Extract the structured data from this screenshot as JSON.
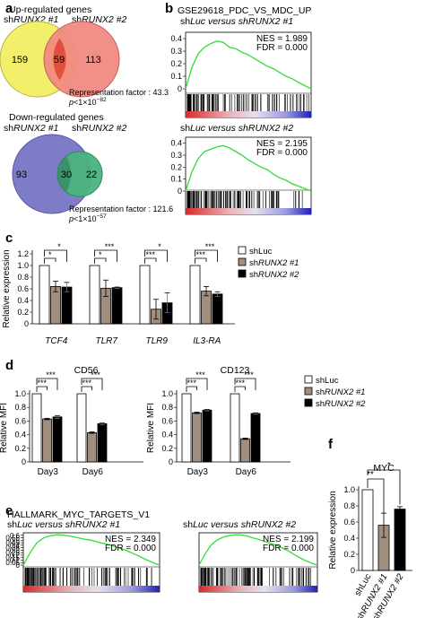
{
  "panel_letters": {
    "a": "a",
    "b": "b",
    "c": "c",
    "d": "d",
    "e": "e",
    "f": "f"
  },
  "venn": [
    {
      "heading": "Up-regulated genes",
      "set1_label": "shRUNX2 #1",
      "set2_label": "shRUNX2 #2",
      "left_only": "159",
      "overlap": "59",
      "right_only": "113",
      "rep_factor": "Representation factor : 43.3",
      "p_value": "p<1×10",
      "p_exp": "−82",
      "colors": {
        "left": "#f2ef6a",
        "right": "#f08a80",
        "overlap": "#e0503c"
      }
    },
    {
      "heading": "Down-regulated genes",
      "set1_label": "shRUNX2 #1",
      "set2_label": "shRUNX2 #2",
      "left_only": "93",
      "overlap": "30",
      "right_only": "22",
      "rep_factor": "Representation factor : 121.6",
      "p_value": "p<1×10",
      "p_exp": "−57",
      "colors": {
        "left": "#7e7cc8",
        "right": "#4bb37c",
        "overlap": "#2f7d5e"
      }
    }
  ],
  "gsea": [
    {
      "title": "GSE29618_PDC_VS_MDC_UP",
      "subtitle": "shLuc versus shRUNX2 #1",
      "nes": "NES = 1.989",
      "fdr": "FDR = 0.000",
      "ylim": [
        0,
        0.45
      ],
      "yticks": [
        "0",
        "0.1",
        "0.2",
        "0.3",
        "0.4"
      ],
      "x": [
        0,
        0.05,
        0.1,
        0.15,
        0.2,
        0.25,
        0.3,
        0.35,
        0.4,
        0.45,
        0.5,
        0.55,
        0.6,
        0.65,
        0.7,
        0.75,
        0.8,
        0.85,
        0.9,
        0.95,
        1.0
      ],
      "y": [
        0,
        0.17,
        0.28,
        0.33,
        0.36,
        0.38,
        0.37,
        0.33,
        0.32,
        0.29,
        0.27,
        0.24,
        0.21,
        0.18,
        0.16,
        0.13,
        0.1,
        0.08,
        0.05,
        0.025,
        0
      ]
    },
    {
      "title": "",
      "subtitle": "shLuc versus shRUNX2 #2",
      "nes": "NES = 2.195",
      "fdr": "FDR = 0.000",
      "ylim": [
        0,
        0.45
      ],
      "yticks": [
        "0",
        "0.1",
        "0.2",
        "0.3",
        "0.4"
      ],
      "x": [
        0,
        0.05,
        0.1,
        0.15,
        0.2,
        0.25,
        0.3,
        0.35,
        0.4,
        0.45,
        0.5,
        0.55,
        0.6,
        0.65,
        0.7,
        0.75,
        0.8,
        0.85,
        0.9,
        0.95,
        1.0
      ],
      "y": [
        0,
        0.16,
        0.27,
        0.33,
        0.35,
        0.37,
        0.38,
        0.36,
        0.33,
        0.3,
        0.26,
        0.23,
        0.2,
        0.18,
        0.14,
        0.11,
        0.09,
        0.06,
        0.04,
        0.02,
        0
      ]
    },
    {
      "title": "HALLMARK_MYC_TARGETS_V1",
      "subtitle": "shLuc versus shRUNX2 #1",
      "nes": "NES = 2.349",
      "fdr": "FDR = 0.000",
      "ylim": [
        0,
        0.65
      ],
      "yticks": [
        "0",
        "0.05",
        "0.1",
        "0.15",
        "0.2",
        "0.25",
        "0.3",
        "0.35",
        "0.4",
        "0.45",
        "0.5",
        "0.55",
        "0.6"
      ],
      "x": [
        0,
        0.05,
        0.1,
        0.15,
        0.2,
        0.25,
        0.3,
        0.35,
        0.4,
        0.45,
        0.5,
        0.55,
        0.6,
        0.65,
        0.7,
        0.75,
        0.8,
        0.85,
        0.9,
        0.95,
        1.0
      ],
      "y": [
        0,
        0.25,
        0.45,
        0.55,
        0.59,
        0.61,
        0.6,
        0.58,
        0.55,
        0.52,
        0.5,
        0.46,
        0.43,
        0.39,
        0.35,
        0.3,
        0.24,
        0.18,
        0.11,
        0.05,
        0
      ]
    },
    {
      "title": "",
      "subtitle": "shLuc versus shRUNX2 #2",
      "nes": "NES = 2.199",
      "fdr": "FDR = 0.000",
      "ylim": [
        0,
        0.65
      ],
      "yticks": [
        "0",
        "0.05",
        "0.1",
        "0.15",
        "0.2",
        "0.25",
        "0.3",
        "0.35",
        "0.4",
        "0.45",
        "0.5",
        "0.55",
        "0.6"
      ],
      "x": [
        0,
        0.05,
        0.1,
        0.15,
        0.2,
        0.25,
        0.3,
        0.35,
        0.4,
        0.45,
        0.5,
        0.55,
        0.6,
        0.65,
        0.7,
        0.75,
        0.8,
        0.85,
        0.9,
        0.95,
        1.0
      ],
      "y": [
        0,
        0.22,
        0.4,
        0.5,
        0.56,
        0.59,
        0.61,
        0.61,
        0.59,
        0.55,
        0.52,
        0.48,
        0.44,
        0.4,
        0.35,
        0.29,
        0.22,
        0.15,
        0.09,
        0.04,
        0
      ]
    }
  ],
  "chart_data": [
    {
      "type": "bar",
      "panel": "c",
      "ylabel": "Relative expression",
      "ylim": [
        0,
        1.2
      ],
      "yticks": [
        "0",
        "0.2",
        "0.4",
        "0.6",
        "0.8",
        "1.0",
        "1.2"
      ],
      "categories": [
        "TCF4",
        "TLR7",
        "TLR9",
        "IL3-RA"
      ],
      "series": [
        {
          "name": "shLuc",
          "values": [
            1.0,
            1.0,
            1.0,
            1.0
          ],
          "err": [
            0,
            0,
            0,
            0
          ],
          "color": "#ffffff"
        },
        {
          "name": "shRUNX2 #1",
          "values": [
            0.64,
            0.61,
            0.25,
            0.56
          ],
          "err": [
            0.09,
            0.14,
            0.17,
            0.08
          ],
          "color": "#a08e7e"
        },
        {
          "name": "shRUNX2 #2",
          "values": [
            0.63,
            0.62,
            0.36,
            0.51
          ],
          "err": [
            0.08,
            0.01,
            0.17,
            0.04
          ],
          "color": "#000000"
        }
      ],
      "sig_inner": [
        "*",
        "*",
        "***",
        "***"
      ],
      "sig_outer": [
        "*",
        "***",
        "*",
        "***"
      ]
    },
    {
      "type": "bar",
      "panel": "d",
      "title": "CD56",
      "ylabel": "Relative MFI",
      "ylim": [
        0,
        1.0
      ],
      "yticks": [
        "0",
        "0.2",
        "0.4",
        "0.6",
        "0.8",
        "1.0"
      ],
      "categories": [
        "Day3",
        "Day6"
      ],
      "series": [
        {
          "name": "shLuc",
          "values": [
            1.0,
            1.0
          ],
          "err": [
            0,
            0
          ],
          "color": "#ffffff"
        },
        {
          "name": "shRUNX2 #1",
          "values": [
            0.63,
            0.43
          ],
          "err": [
            0.01,
            0.01
          ],
          "color": "#a08e7e"
        },
        {
          "name": "shRUNX2 #2",
          "values": [
            0.66,
            0.56
          ],
          "err": [
            0.02,
            0.01
          ],
          "color": "#000000"
        }
      ],
      "sig_inner": [
        "***",
        "***"
      ],
      "sig_outer": [
        "***",
        "***"
      ]
    },
    {
      "type": "bar",
      "panel": "d",
      "title": "CD123",
      "ylabel": "Relative MFI",
      "ylim": [
        0,
        1.0
      ],
      "yticks": [
        "0",
        "0.2",
        "0.4",
        "0.6",
        "0.8",
        "1.0"
      ],
      "categories": [
        "Day3",
        "Day6"
      ],
      "series": [
        {
          "name": "shLuc",
          "values": [
            1.0,
            1.0
          ],
          "err": [
            0,
            0
          ],
          "color": "#ffffff"
        },
        {
          "name": "shRUNX2 #1",
          "values": [
            0.72,
            0.34
          ],
          "err": [
            0.01,
            0.01
          ],
          "color": "#a08e7e"
        },
        {
          "name": "shRUNX2 #2",
          "values": [
            0.76,
            0.71
          ],
          "err": [
            0.01,
            0.01
          ],
          "color": "#000000"
        }
      ],
      "sig_inner": [
        "***",
        "***"
      ],
      "sig_outer": [
        "***",
        "***"
      ]
    },
    {
      "type": "bar",
      "panel": "f",
      "title": "MYC",
      "ylabel": "Relative expression",
      "ylim": [
        0,
        1.0
      ],
      "yticks": [
        "0",
        "0.2",
        "0.4",
        "0.6",
        "0.8",
        "1.0"
      ],
      "categories": [
        "shLuc",
        "shRUNX2 #1",
        "shRUNX2 #2"
      ],
      "series": [
        {
          "name": "",
          "values": [
            1.0,
            0.56,
            0.76
          ],
          "err": [
            0,
            0.15,
            0.03
          ],
          "colors": [
            "#ffffff",
            "#a08e7e",
            "#000000"
          ]
        }
      ],
      "sig_inner": [
        "**"
      ],
      "sig_outer": [
        "*"
      ]
    }
  ],
  "legend": {
    "c": [
      "shLuc",
      "shRUNX2 #1",
      "shRUNX2 #2"
    ],
    "d": [
      "shLuc",
      "shRUNX2 #1",
      "shRUNX2 #2"
    ]
  }
}
